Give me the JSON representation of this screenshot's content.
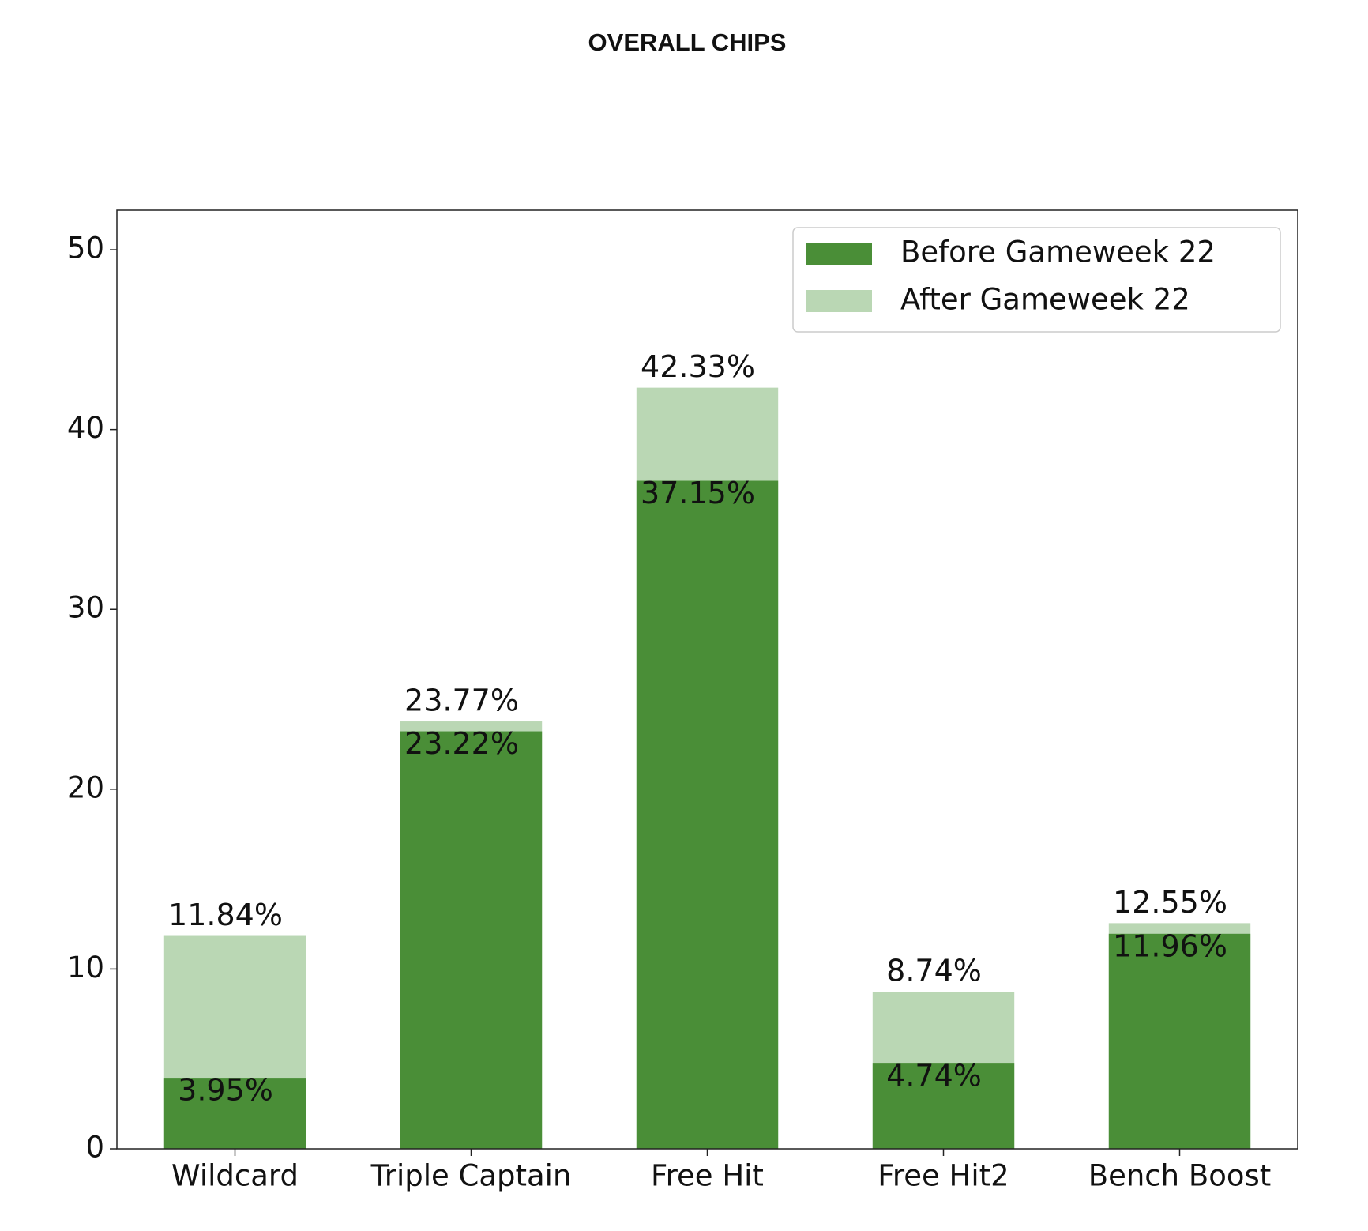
{
  "chart_data": {
    "type": "bar",
    "title": "OVERALL CHIPS",
    "categories": [
      "Wildcard",
      "Triple Captain",
      "Free Hit",
      "Free Hit2",
      "Bench Boost"
    ],
    "series": [
      {
        "name": "After Gameweek 22",
        "color": "#bad7b4",
        "values": [
          11.84,
          23.77,
          42.33,
          8.74,
          12.55
        ],
        "value_labels": [
          "11.84%",
          "23.77%",
          "42.33%",
          "8.74%",
          "12.55%"
        ]
      },
      {
        "name": "Before Gameweek 22",
        "color": "#4a8e37",
        "values": [
          3.95,
          23.22,
          37.15,
          4.74,
          11.96
        ],
        "value_labels": [
          "3.95%",
          "23.22%",
          "37.15%",
          "4.74%",
          "11.96%"
        ]
      }
    ],
    "ylim": [
      0,
      52.2
    ],
    "yticks": [
      0,
      10,
      20,
      30,
      40,
      50
    ],
    "legend": "upper right"
  }
}
